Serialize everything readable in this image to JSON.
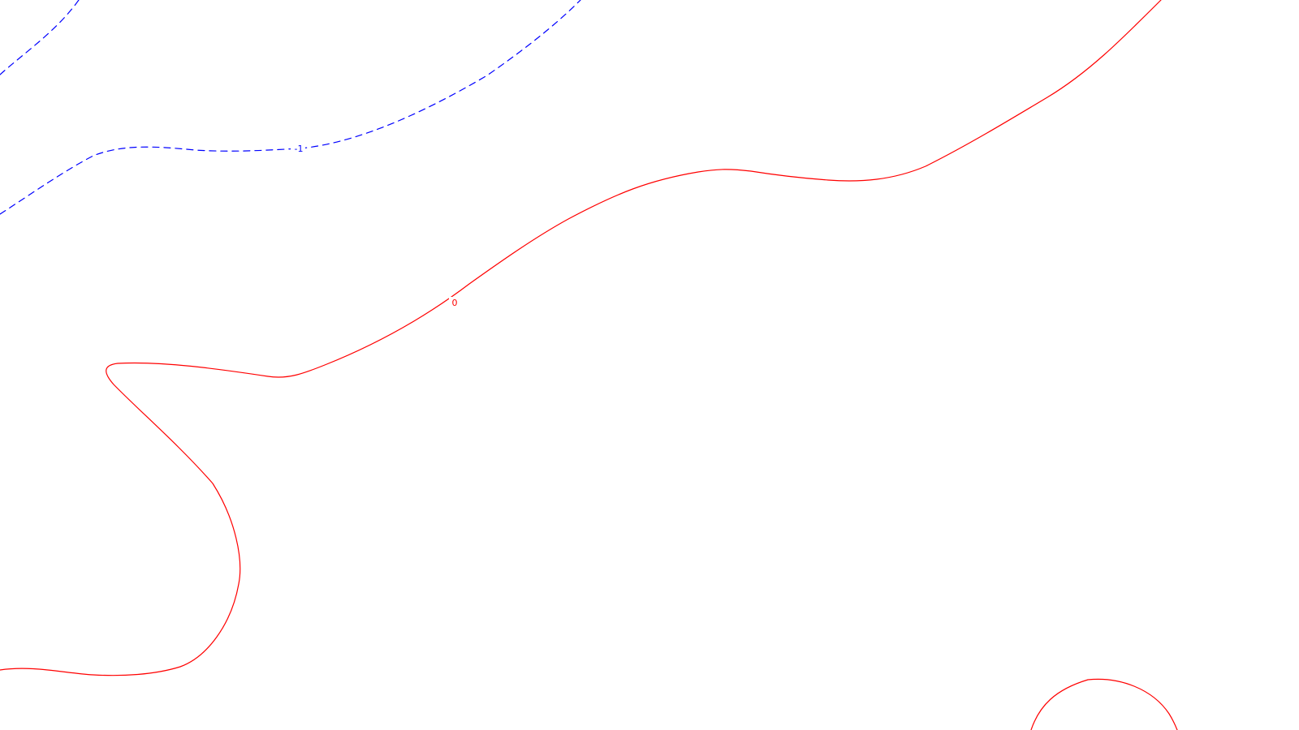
{
  "contours": [
    {
      "level_label": "-1",
      "color": "#0000ff",
      "style": "dashed"
    },
    {
      "level_label": "0",
      "color": "#ff0000",
      "style": "solid"
    }
  ]
}
